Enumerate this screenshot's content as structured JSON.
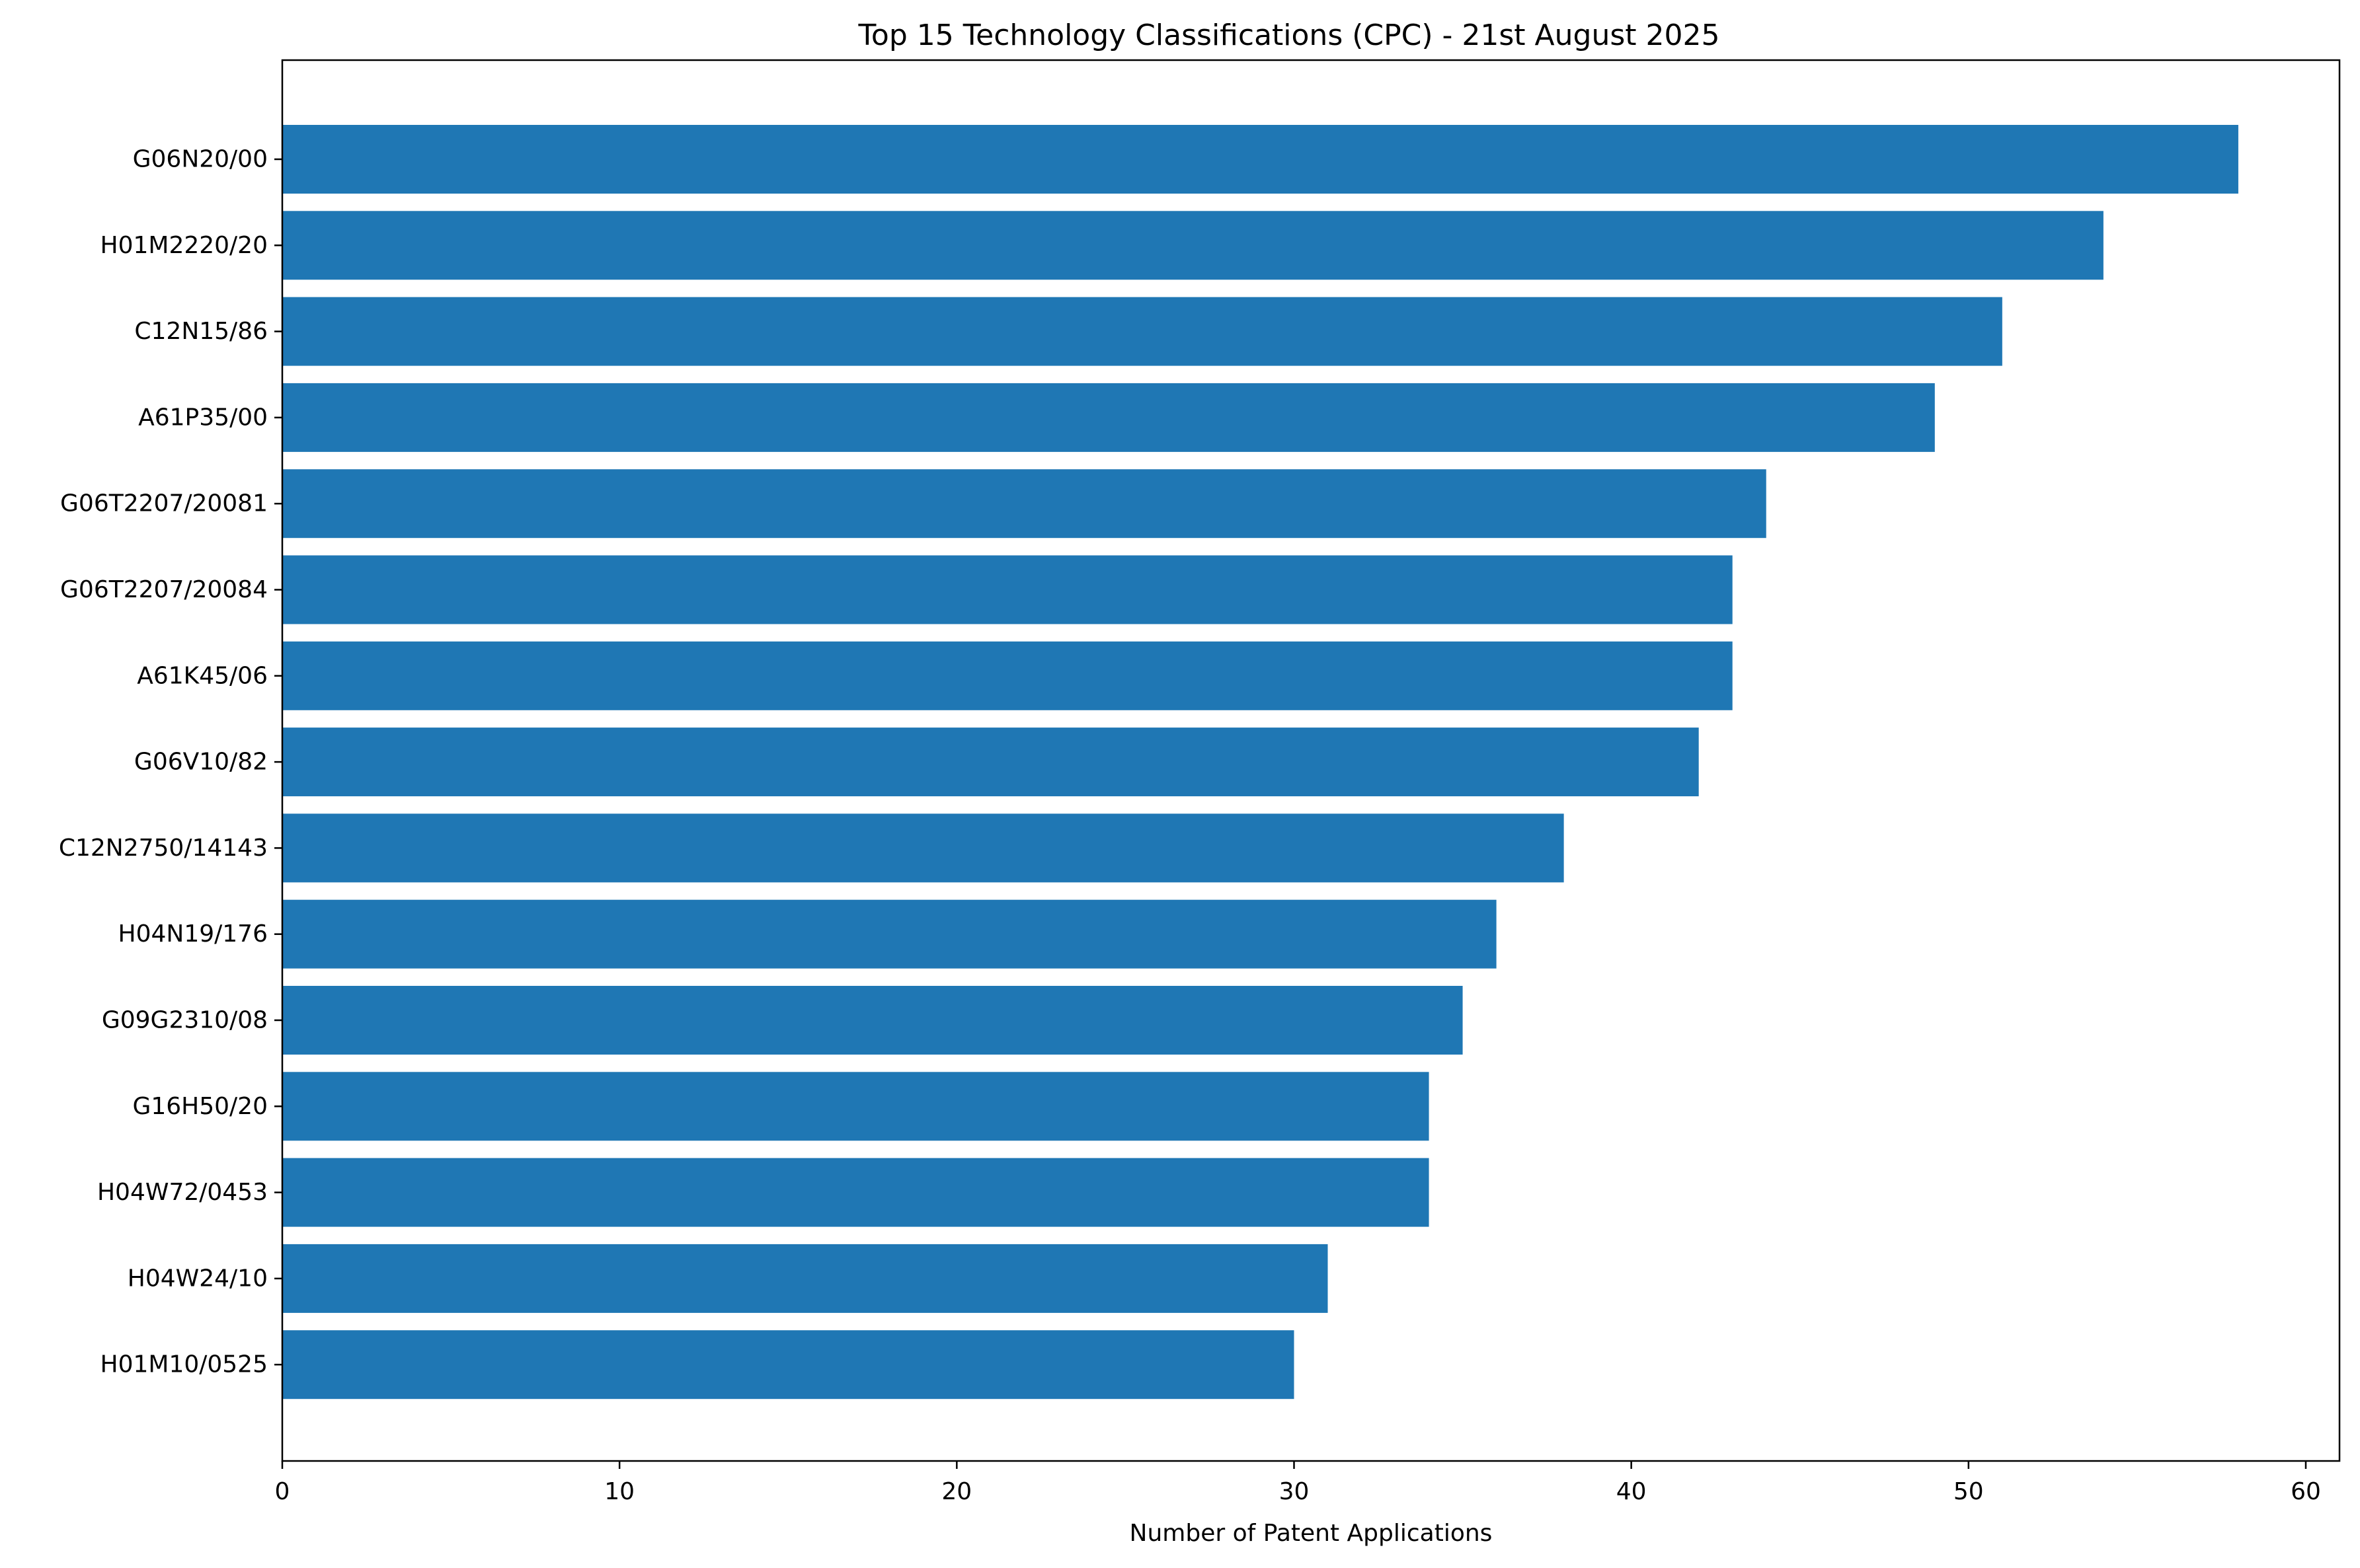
{
  "chart_data": {
    "type": "bar",
    "orientation": "horizontal",
    "title": "Top 15 Technology Classifications (CPC) - 21st August 2025",
    "xlabel": "Number of Patent Applications",
    "ylabel": "",
    "xlim": [
      0,
      61
    ],
    "xticks": [
      0,
      10,
      20,
      30,
      40,
      50,
      60
    ],
    "grid": false,
    "bar_color": "#1f77b4",
    "categories": [
      "G06N20/00",
      "H01M2220/20",
      "C12N15/86",
      "A61P35/00",
      "G06T2207/20081",
      "G06T2207/20084",
      "A61K45/06",
      "G06V10/82",
      "C12N2750/14143",
      "H04N19/176",
      "G09G2310/08",
      "G16H50/20",
      "H04W72/0453",
      "H04W24/10",
      "H01M10/0525"
    ],
    "values": [
      58,
      54,
      51,
      49,
      44,
      43,
      43,
      42,
      38,
      36,
      35,
      34,
      34,
      31,
      30
    ]
  }
}
